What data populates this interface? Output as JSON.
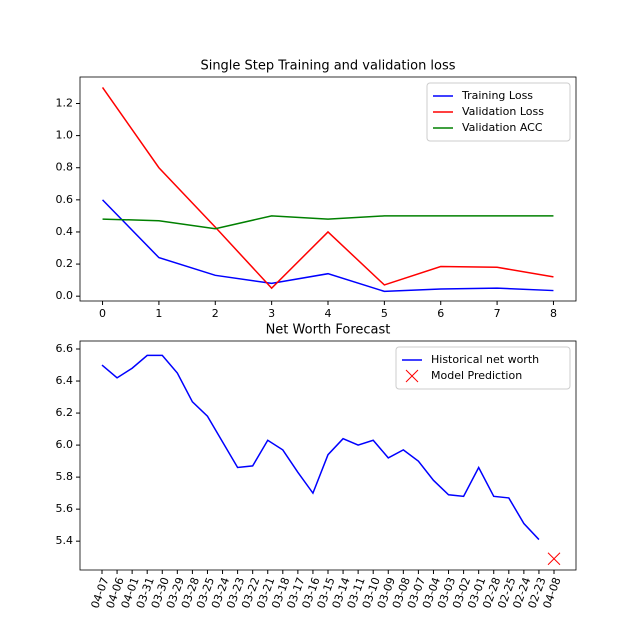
{
  "chart_data": [
    {
      "type": "line",
      "title": "Single Step Training and validation loss",
      "x": [
        0,
        1,
        2,
        3,
        4,
        5,
        6,
        7,
        8
      ],
      "xlim": [
        -0.4,
        8.4
      ],
      "xticks": [
        0,
        1,
        2,
        3,
        4,
        5,
        6,
        7,
        8
      ],
      "ylim": [
        -0.03,
        1.365
      ],
      "yticks": [
        {
          "value": 0,
          "label": "0.0"
        },
        0.2,
        0.4,
        0.6,
        0.8,
        {
          "value": 1,
          "label": "1.0"
        },
        1.2
      ],
      "legend": "upper right",
      "series": [
        {
          "name": "Training Loss",
          "color": "#0000ff",
          "values": [
            0.6,
            0.24,
            0.13,
            0.08,
            0.14,
            0.03,
            0.045,
            0.05,
            0.035
          ]
        },
        {
          "name": "Validation Loss",
          "color": "#ff0000",
          "values": [
            1.3,
            0.8,
            0.43,
            0.05,
            0.4,
            0.07,
            0.185,
            0.18,
            0.12
          ]
        },
        {
          "name": "Validation ACC",
          "color": "#008000",
          "values": [
            0.48,
            0.47,
            0.42,
            0.5,
            0.48,
            0.5,
            0.5,
            0.5,
            0.5
          ]
        }
      ]
    },
    {
      "type": "line",
      "title": "Net Worth Forecast",
      "categories": [
        "04-07",
        "04-06",
        "04-01",
        "03-31",
        "03-30",
        "03-29",
        "03-28",
        "03-25",
        "03-24",
        "03-23",
        "03-22",
        "03-21",
        "03-18",
        "03-17",
        "03-16",
        "03-15",
        "03-14",
        "03-11",
        "03-10",
        "03-09",
        "03-08",
        "03-07",
        "03-04",
        "03-03",
        "03-02",
        "03-01",
        "02-28",
        "02-25",
        "02-24",
        "02-23",
        "04-08"
      ],
      "ylim": [
        5.22,
        6.65
      ],
      "yticks": [
        5.4,
        5.6,
        5.8,
        {
          "value": 6,
          "label": "6.0"
        },
        6.2,
        6.4,
        6.6
      ],
      "legend": "upper right",
      "series": [
        {
          "name": "Historical net worth",
          "color": "#0000ff",
          "values": [
            6.5,
            6.42,
            6.48,
            6.56,
            6.56,
            6.45,
            6.27,
            6.18,
            6.02,
            5.86,
            5.87,
            6.03,
            5.97,
            5.83,
            5.7,
            5.94,
            6.04,
            6.0,
            6.03,
            5.92,
            5.97,
            5.9,
            5.78,
            5.69,
            5.68,
            5.86,
            5.68,
            5.67,
            5.51,
            5.41,
            null
          ]
        },
        {
          "name": "Model Prediction",
          "color": "#ff0000",
          "marker": "x",
          "values": [
            null,
            null,
            null,
            null,
            null,
            null,
            null,
            null,
            null,
            null,
            null,
            null,
            null,
            null,
            null,
            null,
            null,
            null,
            null,
            null,
            null,
            null,
            null,
            null,
            null,
            null,
            null,
            null,
            null,
            null,
            5.29
          ]
        }
      ]
    }
  ]
}
